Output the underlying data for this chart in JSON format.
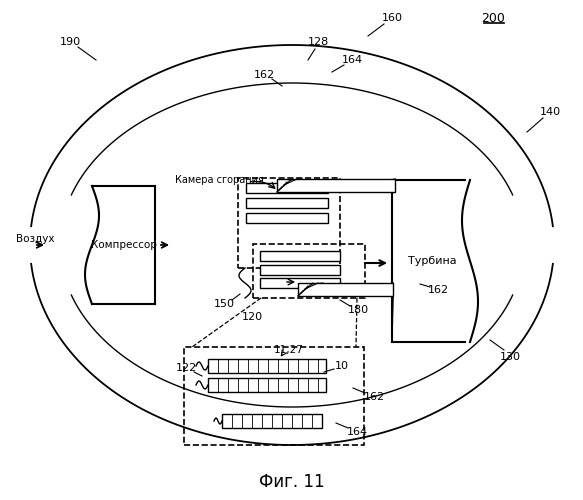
{
  "title": "Фиг. 11",
  "label_200": "200",
  "label_190": "190",
  "label_140": "140",
  "label_160": "160",
  "label_130": "130",
  "label_150": "150",
  "label_120": "120",
  "label_180": "180",
  "label_162a": "162",
  "label_162b": "162",
  "label_162c": "162",
  "label_164a": "164",
  "label_164b": "164",
  "label_128": "128",
  "label_122": "122",
  "label_10": "10",
  "label_1127": "11,27",
  "label_kamera": "Камера сгорания",
  "label_vozdukh": "Воздух",
  "label_kompressor": "Компрессор",
  "label_turbina": "Турбина",
  "bg_color": "#ffffff",
  "line_color": "#000000"
}
